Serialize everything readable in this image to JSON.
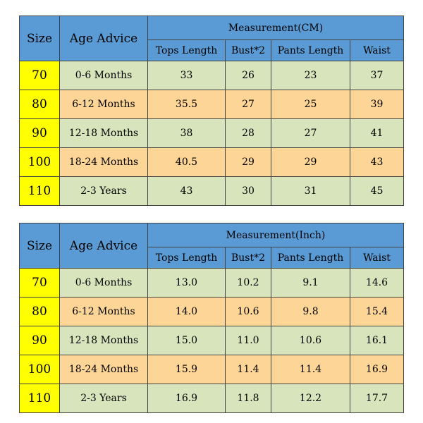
{
  "tables": [
    {
      "size_header": "Size",
      "age_header": "Age Advice",
      "measurement_header": "Measurement(CM)",
      "columns": [
        "Tops Length",
        "Bust*2",
        "Pants Length",
        "Waist"
      ],
      "rows": [
        {
          "size": "70",
          "age": "0-6 Months",
          "tops": "33",
          "bust": "26",
          "pants": "23",
          "waist": "37"
        },
        {
          "size": "80",
          "age": "6-12 Months",
          "tops": "35.5",
          "bust": "27",
          "pants": "25",
          "waist": "39"
        },
        {
          "size": "90",
          "age": "12-18 Months",
          "tops": "38",
          "bust": "28",
          "pants": "27",
          "waist": "41"
        },
        {
          "size": "100",
          "age": "18-24 Months",
          "tops": "40.5",
          "bust": "29",
          "pants": "29",
          "waist": "43"
        },
        {
          "size": "110",
          "age": "2-3 Years",
          "tops": "43",
          "bust": "30",
          "pants": "31",
          "waist": "45"
        }
      ]
    },
    {
      "size_header": "Size",
      "age_header": "Age Advice",
      "measurement_header": "Measurement(Inch)",
      "columns": [
        "Tops Length",
        "Bust*2",
        "Pants Length",
        "Waist"
      ],
      "rows": [
        {
          "size": "70",
          "age": "0-6 Months",
          "tops": "13.0",
          "bust": "10.2",
          "pants": "9.1",
          "waist": "14.6"
        },
        {
          "size": "80",
          "age": "6-12 Months",
          "tops": "14.0",
          "bust": "10.6",
          "pants": "9.8",
          "waist": "15.4"
        },
        {
          "size": "90",
          "age": "12-18 Months",
          "tops": "15.0",
          "bust": "11.0",
          "pants": "10.6",
          "waist": "16.1"
        },
        {
          "size": "100",
          "age": "18-24 Months",
          "tops": "15.9",
          "bust": "11.4",
          "pants": "11.4",
          "waist": "16.9"
        },
        {
          "size": "110",
          "age": "2-3 Years",
          "tops": "16.9",
          "bust": "11.8",
          "pants": "12.2",
          "waist": "17.7"
        }
      ]
    }
  ],
  "colors": {
    "header_blue": "#5b9bd5",
    "row_green": "#d8e4bc",
    "row_orange": "#fcd597",
    "size_yellow": "#ffff00",
    "border": "#444444"
  }
}
